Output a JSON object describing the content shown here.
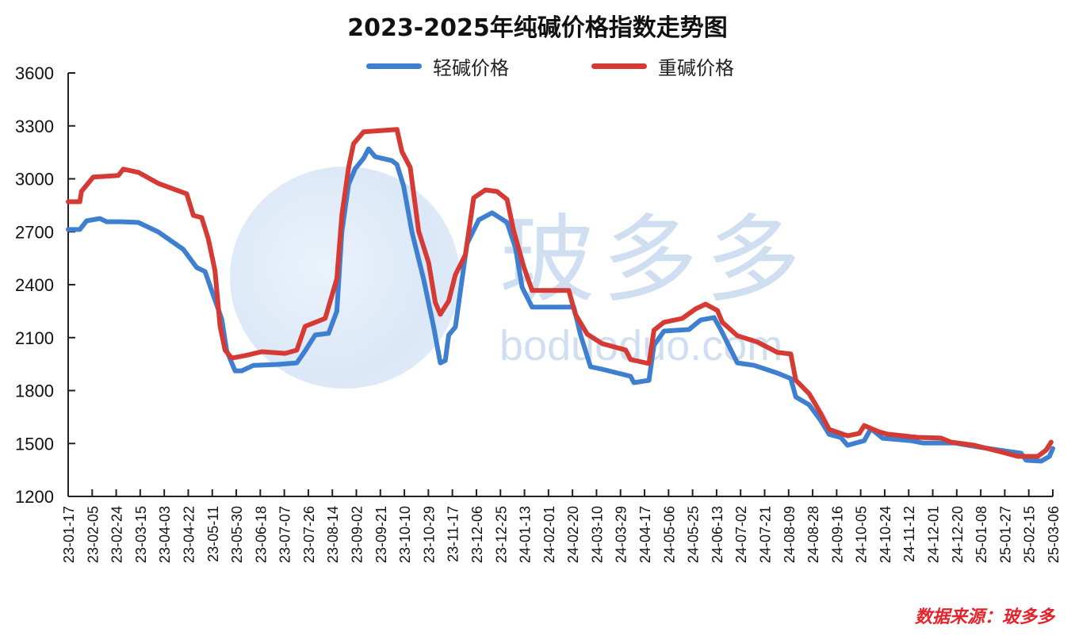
{
  "title": "2023-2025年纯碱价格指数走势图",
  "source_label": "数据来源：玻多多",
  "watermark": {
    "cn": "玻多多",
    "en": "boduoduo.com"
  },
  "colors": {
    "light": "#3f7fd0",
    "heavy": "#d53a35",
    "axis": "#222222"
  },
  "chart_data": {
    "type": "line",
    "title": "2023-2025年纯碱价格指数走势图",
    "xlabel": "",
    "ylabel": "",
    "ylim": [
      1200,
      3600
    ],
    "yticks": [
      1200,
      1500,
      1800,
      2100,
      2400,
      2700,
      3000,
      3300,
      3600
    ],
    "grid": false,
    "legend_position": "top",
    "categories": [
      "23-01-17",
      "23-02-05",
      "23-02-24",
      "23-03-15",
      "23-04-03",
      "23-04-22",
      "23-05-11",
      "23-05-30",
      "23-06-18",
      "23-07-07",
      "23-07-26",
      "23-08-14",
      "23-09-02",
      "23-09-21",
      "23-10-10",
      "23-10-29",
      "23-11-17",
      "23-12-06",
      "23-12-25",
      "24-01-13",
      "24-02-01",
      "24-02-20",
      "24-03-10",
      "24-03-29",
      "24-04-17",
      "24-05-06",
      "24-05-25",
      "24-06-13",
      "24-07-02",
      "24-07-21",
      "24-08-09",
      "24-08-28",
      "24-09-16",
      "24-10-05",
      "24-10-24",
      "24-11-12",
      "24-12-01",
      "24-12-20",
      "25-01-08",
      "25-01-27",
      "25-02-15",
      "25-03-06"
    ],
    "series": [
      {
        "name": "轻碱价格",
        "color": "#3f7fd0",
        "points": [
          [
            0,
            2713
          ],
          [
            0.7,
            2713
          ],
          [
            1.1,
            2762
          ],
          [
            1.9,
            2775
          ],
          [
            2.3,
            2757
          ],
          [
            3.2,
            2757
          ],
          [
            4.2,
            2753
          ],
          [
            5.4,
            2699
          ],
          [
            6.9,
            2600
          ],
          [
            7.7,
            2497
          ],
          [
            8.2,
            2475
          ],
          [
            8.7,
            2340
          ],
          [
            9.2,
            2205
          ],
          [
            9.5,
            2025
          ],
          [
            10.0,
            1912
          ],
          [
            10.4,
            1912
          ],
          [
            11.1,
            1943
          ],
          [
            12.5,
            1948
          ],
          [
            13.7,
            1957
          ],
          [
            14.2,
            2025
          ],
          [
            14.8,
            2115
          ],
          [
            15.6,
            2124
          ],
          [
            16.1,
            2250
          ],
          [
            16.4,
            2699
          ],
          [
            16.8,
            2968
          ],
          [
            17.2,
            3058
          ],
          [
            17.7,
            3116
          ],
          [
            18.0,
            3170
          ],
          [
            18.4,
            3125
          ],
          [
            19.4,
            3103
          ],
          [
            19.7,
            3081
          ],
          [
            20.1,
            2959
          ],
          [
            20.6,
            2699
          ],
          [
            21.3,
            2430
          ],
          [
            21.9,
            2160
          ],
          [
            22.3,
            1957
          ],
          [
            22.6,
            1970
          ],
          [
            22.8,
            2115
          ],
          [
            23.2,
            2160
          ],
          [
            23.9,
            2632
          ],
          [
            24.6,
            2767
          ],
          [
            25.4,
            2807
          ],
          [
            26.3,
            2753
          ],
          [
            26.8,
            2609
          ],
          [
            27.2,
            2385
          ],
          [
            27.8,
            2273
          ],
          [
            30.3,
            2273
          ],
          [
            30.7,
            2115
          ],
          [
            31.3,
            1935
          ],
          [
            32.0,
            1921
          ],
          [
            33.7,
            1881
          ],
          [
            33.9,
            1845
          ],
          [
            34.8,
            1858
          ],
          [
            35.1,
            2056
          ],
          [
            35.7,
            2137
          ],
          [
            37.2,
            2146
          ],
          [
            37.9,
            2200
          ],
          [
            38.7,
            2214
          ],
          [
            39.1,
            2146
          ],
          [
            40.1,
            1957
          ],
          [
            41.1,
            1943
          ],
          [
            42.5,
            1899
          ],
          [
            43.3,
            1868
          ],
          [
            43.6,
            1764
          ],
          [
            44.4,
            1719
          ],
          [
            45.1,
            1629
          ],
          [
            45.6,
            1552
          ],
          [
            46.3,
            1534
          ],
          [
            46.7,
            1490
          ],
          [
            47.2,
            1503
          ],
          [
            47.7,
            1516
          ],
          [
            48.1,
            1584
          ],
          [
            48.8,
            1530
          ],
          [
            50.5,
            1516
          ],
          [
            51.2,
            1503
          ],
          [
            53.1,
            1503
          ],
          [
            54.5,
            1481
          ],
          [
            56.4,
            1454
          ],
          [
            57.1,
            1445
          ],
          [
            57.4,
            1405
          ],
          [
            58.3,
            1400
          ],
          [
            58.8,
            1427
          ],
          [
            59.0,
            1472
          ]
        ]
      },
      {
        "name": "重碱价格",
        "color": "#d53a35",
        "points": [
          [
            0,
            2870
          ],
          [
            0.7,
            2870
          ],
          [
            0.8,
            2929
          ],
          [
            1.5,
            3010
          ],
          [
            3.0,
            3019
          ],
          [
            3.3,
            3055
          ],
          [
            4.2,
            3037
          ],
          [
            5.4,
            2974
          ],
          [
            7.1,
            2915
          ],
          [
            7.5,
            2793
          ],
          [
            8.0,
            2780
          ],
          [
            8.4,
            2659
          ],
          [
            8.8,
            2479
          ],
          [
            9.1,
            2164
          ],
          [
            9.4,
            2029
          ],
          [
            9.8,
            1984
          ],
          [
            10.6,
            1998
          ],
          [
            11.6,
            2020
          ],
          [
            13.0,
            2011
          ],
          [
            13.7,
            2029
          ],
          [
            14.2,
            2164
          ],
          [
            15.4,
            2209
          ],
          [
            16.1,
            2434
          ],
          [
            16.4,
            2793
          ],
          [
            16.8,
            3064
          ],
          [
            17.1,
            3199
          ],
          [
            17.7,
            3266
          ],
          [
            19.7,
            3280
          ],
          [
            20.0,
            3154
          ],
          [
            20.5,
            3064
          ],
          [
            21.0,
            2703
          ],
          [
            21.6,
            2524
          ],
          [
            22.0,
            2299
          ],
          [
            22.3,
            2232
          ],
          [
            22.8,
            2308
          ],
          [
            23.2,
            2456
          ],
          [
            23.8,
            2569
          ],
          [
            24.3,
            2892
          ],
          [
            25.0,
            2937
          ],
          [
            25.7,
            2928
          ],
          [
            26.3,
            2883
          ],
          [
            26.7,
            2703
          ],
          [
            27.3,
            2501
          ],
          [
            27.8,
            2367
          ],
          [
            30.0,
            2367
          ],
          [
            30.4,
            2232
          ],
          [
            31.1,
            2120
          ],
          [
            32.0,
            2066
          ],
          [
            33.4,
            2030
          ],
          [
            33.7,
            1976
          ],
          [
            34.8,
            1953
          ],
          [
            35.1,
            2142
          ],
          [
            35.7,
            2187
          ],
          [
            36.8,
            2209
          ],
          [
            37.6,
            2263
          ],
          [
            38.2,
            2290
          ],
          [
            38.9,
            2254
          ],
          [
            39.2,
            2187
          ],
          [
            40.1,
            2111
          ],
          [
            41.3,
            2075
          ],
          [
            42.5,
            2016
          ],
          [
            43.3,
            2007
          ],
          [
            43.6,
            1859
          ],
          [
            44.4,
            1782
          ],
          [
            45.1,
            1670
          ],
          [
            45.6,
            1580
          ],
          [
            46.3,
            1557
          ],
          [
            46.7,
            1544
          ],
          [
            47.4,
            1557
          ],
          [
            47.7,
            1602
          ],
          [
            48.6,
            1566
          ],
          [
            49.1,
            1553
          ],
          [
            50.9,
            1535
          ],
          [
            52.3,
            1531
          ],
          [
            52.9,
            1508
          ],
          [
            54.3,
            1490
          ],
          [
            56.2,
            1445
          ],
          [
            56.9,
            1427
          ],
          [
            58.1,
            1427
          ],
          [
            58.6,
            1463
          ],
          [
            58.9,
            1508
          ]
        ]
      }
    ]
  },
  "legend": [
    {
      "label": "轻碱价格",
      "color": "#3f7fd0"
    },
    {
      "label": "重碱价格",
      "color": "#d53a35"
    }
  ]
}
